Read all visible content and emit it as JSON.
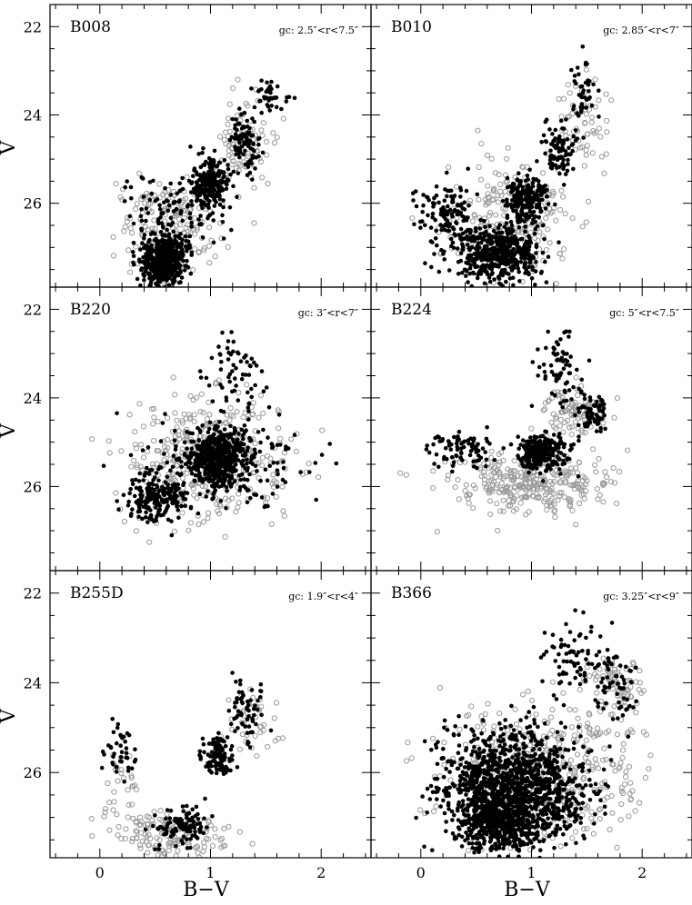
{
  "chart_data": {
    "type": "scatter",
    "layout": "3 rows x 2 columns, shared axes",
    "xlabel": "B−V",
    "ylabel": "V",
    "xlim": [
      -0.45,
      2.45
    ],
    "ylim": [
      27.9,
      21.5
    ],
    "y_axis_inverted": true,
    "x_ticks": [
      0,
      1,
      2
    ],
    "y_ticks": [
      22,
      24,
      26
    ],
    "grid": false,
    "marker_styles": {
      "filled": {
        "color": "#000000",
        "shape": "filled circle"
      },
      "open": {
        "color": "#999999",
        "shape": "open circle"
      }
    },
    "panels": [
      {
        "name": "B008",
        "annotation": "gc: 2.5″<r<7.5″",
        "filled_clouds": [
          {
            "x": [
              0.3,
              0.85
            ],
            "y": [
              26.6,
              28.0
            ],
            "n": 520
          },
          {
            "x": [
              0.8,
              1.2
            ],
            "y": [
              24.8,
              26.3
            ],
            "n": 200
          },
          {
            "x": [
              1.1,
              1.5
            ],
            "y": [
              23.8,
              25.5
            ],
            "n": 90
          },
          {
            "x": [
              1.3,
              1.75
            ],
            "y": [
              22.9,
              24.2
            ],
            "n": 40
          },
          {
            "x": [
              0.15,
              1.3
            ],
            "y": [
              25.0,
              27.2
            ],
            "n": 110
          }
        ],
        "open_clouds": [
          {
            "x": [
              -0.05,
              1.3
            ],
            "y": [
              25.0,
              28.0
            ],
            "n": 180
          },
          {
            "x": [
              0.95,
              1.65
            ],
            "y": [
              23.2,
              26.2
            ],
            "n": 90
          }
        ]
      },
      {
        "name": "B010",
        "annotation": "gc: 2.85″<r<7″",
        "filled_clouds": [
          {
            "x": [
              0.25,
              1.2
            ],
            "y": [
              26.3,
              28.0
            ],
            "n": 480
          },
          {
            "x": [
              0.7,
              1.2
            ],
            "y": [
              25.2,
              26.6
            ],
            "n": 220
          },
          {
            "x": [
              1.05,
              1.5
            ],
            "y": [
              24.0,
              25.6
            ],
            "n": 90
          },
          {
            "x": [
              1.3,
              1.65
            ],
            "y": [
              22.5,
              24.2
            ],
            "n": 40
          },
          {
            "x": [
              -0.1,
              0.6
            ],
            "y": [
              25.2,
              27.5
            ],
            "n": 130
          }
        ],
        "open_clouds": [
          {
            "x": [
              0.0,
              1.6
            ],
            "y": [
              24.5,
              28.0
            ],
            "n": 200
          },
          {
            "x": [
              1.2,
              1.8
            ],
            "y": [
              23.0,
              25.5
            ],
            "n": 60
          }
        ]
      },
      {
        "name": "B220",
        "annotation": "gc: 3″<r<7″",
        "filled_clouds": [
          {
            "x": [
              0.7,
              1.4
            ],
            "y": [
              24.6,
              26.2
            ],
            "n": 520
          },
          {
            "x": [
              0.2,
              0.85
            ],
            "y": [
              25.5,
              27.0
            ],
            "n": 200
          },
          {
            "x": [
              0.85,
              1.55
            ],
            "y": [
              22.2,
              24.6
            ],
            "n": 60
          },
          {
            "x": [
              -0.05,
              2.2
            ],
            "y": [
              24.0,
              27.0
            ],
            "n": 160
          }
        ],
        "open_clouds": [
          {
            "x": [
              0.0,
              2.0
            ],
            "y": [
              23.5,
              27.1
            ],
            "n": 360
          }
        ]
      },
      {
        "name": "B224",
        "annotation": "gc: 5″<r<7.5″",
        "filled_clouds": [
          {
            "x": [
              0.8,
              1.4
            ],
            "y": [
              24.7,
              25.8
            ],
            "n": 260
          },
          {
            "x": [
              1.0,
              1.5
            ],
            "y": [
              22.0,
              24.6
            ],
            "n": 70
          },
          {
            "x": [
              1.4,
              1.7
            ],
            "y": [
              23.7,
              25.0
            ],
            "n": 70
          },
          {
            "x": [
              -0.05,
              0.8
            ],
            "y": [
              24.5,
              25.8
            ],
            "n": 80
          }
        ],
        "open_clouds": [
          {
            "x": [
              0.0,
              1.9
            ],
            "y": [
              25.0,
              26.9
            ],
            "n": 320
          },
          {
            "x": [
              0.9,
              1.8
            ],
            "y": [
              23.6,
              25.0
            ],
            "n": 90
          }
        ]
      },
      {
        "name": "B255D",
        "annotation": "gc: 1.9″<r<4″",
        "filled_clouds": [
          {
            "x": [
              0.9,
              1.25
            ],
            "y": [
              25.1,
              26.1
            ],
            "n": 110
          },
          {
            "x": [
              1.1,
              1.55
            ],
            "y": [
              23.6,
              25.5
            ],
            "n": 60
          },
          {
            "x": [
              0.4,
              1.1
            ],
            "y": [
              26.6,
              27.8
            ],
            "n": 110
          },
          {
            "x": [
              0.0,
              0.4
            ],
            "y": [
              24.5,
              26.6
            ],
            "n": 40
          }
        ],
        "open_clouds": [
          {
            "x": [
              0.0,
              1.3
            ],
            "y": [
              26.8,
              28.0
            ],
            "n": 140
          },
          {
            "x": [
              1.1,
              1.75
            ],
            "y": [
              24.0,
              25.8
            ],
            "n": 40
          },
          {
            "x": [
              -0.05,
              0.4
            ],
            "y": [
              24.9,
              27.5
            ],
            "n": 30
          }
        ]
      },
      {
        "name": "B366",
        "annotation": "gc: 3.25″<r<9″",
        "filled_clouds": [
          {
            "x": [
              -0.05,
              1.7
            ],
            "y": [
              24.6,
              28.0
            ],
            "n": 1200
          },
          {
            "x": [
              0.3,
              1.1
            ],
            "y": [
              26.2,
              28.0
            ],
            "n": 450
          },
          {
            "x": [
              1.0,
              1.9
            ],
            "y": [
              22.3,
              24.6
            ],
            "n": 80
          },
          {
            "x": [
              1.5,
              2.0
            ],
            "y": [
              23.3,
              25.2
            ],
            "n": 50
          }
        ],
        "open_clouds": [
          {
            "x": [
              -0.05,
              2.2
            ],
            "y": [
              24.0,
              28.0
            ],
            "n": 420
          },
          {
            "x": [
              1.4,
              2.1
            ],
            "y": [
              23.0,
              25.0
            ],
            "n": 80
          }
        ]
      }
    ]
  }
}
